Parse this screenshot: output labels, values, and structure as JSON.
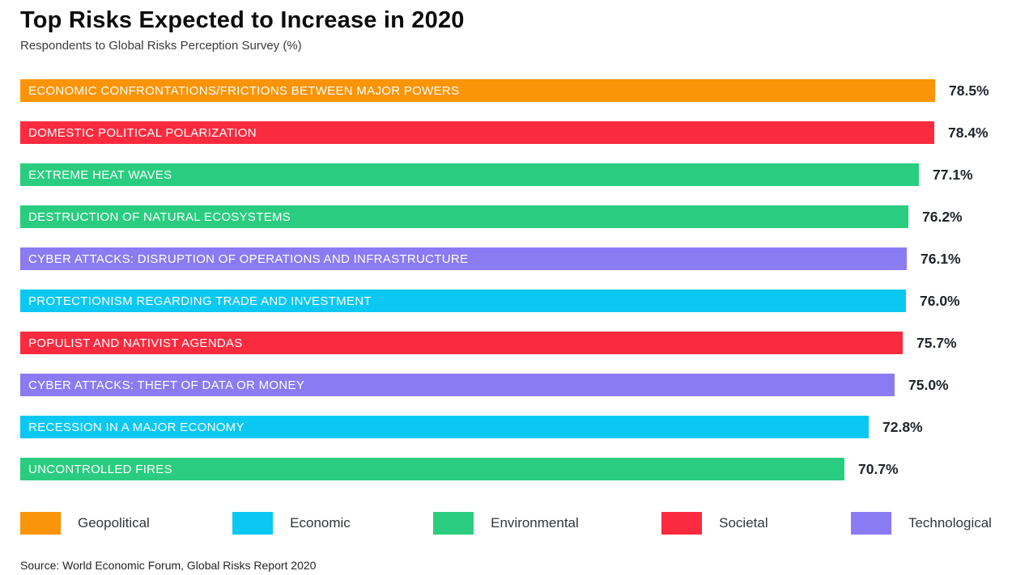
{
  "header": {
    "title": "Top Risks Expected to Increase in 2020",
    "subtitle": "Respondents to Global Risks Perception Survey (%)"
  },
  "footer": {
    "source": "Source: World Economic Forum, Global Risks Report 2020"
  },
  "chart_data": {
    "type": "bar",
    "orientation": "horizontal",
    "title": "Top Risks Expected to Increase in 2020",
    "subtitle": "Respondents to Global Risks Perception Survey (%)",
    "value_suffix": "%",
    "xlim": [
      0,
      78.5
    ],
    "grid": false,
    "legend_position": "bottom",
    "bars": [
      {
        "label": "ECONOMIC CONFRONTATIONS/FRICTIONS BETWEEN MAJOR POWERS",
        "value": 78.5,
        "category": "Geopolitical"
      },
      {
        "label": "DOMESTIC POLITICAL POLARIZATION",
        "value": 78.4,
        "category": "Societal"
      },
      {
        "label": "EXTREME HEAT WAVES",
        "value": 77.1,
        "category": "Environmental"
      },
      {
        "label": "DESTRUCTION OF NATURAL ECOSYSTEMS",
        "value": 76.2,
        "category": "Environmental"
      },
      {
        "label": "CYBER ATTACKS: DISRUPTION OF OPERATIONS AND INFRASTRUCTURE",
        "value": 76.1,
        "category": "Technological"
      },
      {
        "label": "PROTECTIONISM REGARDING TRADE AND INVESTMENT",
        "value": 76.0,
        "category": "Economic"
      },
      {
        "label": "POPULIST AND NATIVIST AGENDAS",
        "value": 75.7,
        "category": "Societal"
      },
      {
        "label": "CYBER ATTACKS: THEFT OF DATA OR MONEY",
        "value": 75.0,
        "category": "Technological"
      },
      {
        "label": "RECESSION IN A MAJOR ECONOMY",
        "value": 72.8,
        "category": "Economic"
      },
      {
        "label": "UNCONTROLLED FIRES",
        "value": 70.7,
        "category": "Environmental"
      }
    ],
    "legend": [
      {
        "label": "Geopolitical",
        "color": "#FA9408"
      },
      {
        "label": "Economic",
        "color": "#0BC8F2"
      },
      {
        "label": "Environmental",
        "color": "#2ACD7F"
      },
      {
        "label": "Societal",
        "color": "#FB2B3F"
      },
      {
        "label": "Technological",
        "color": "#8B7BF2"
      }
    ]
  }
}
